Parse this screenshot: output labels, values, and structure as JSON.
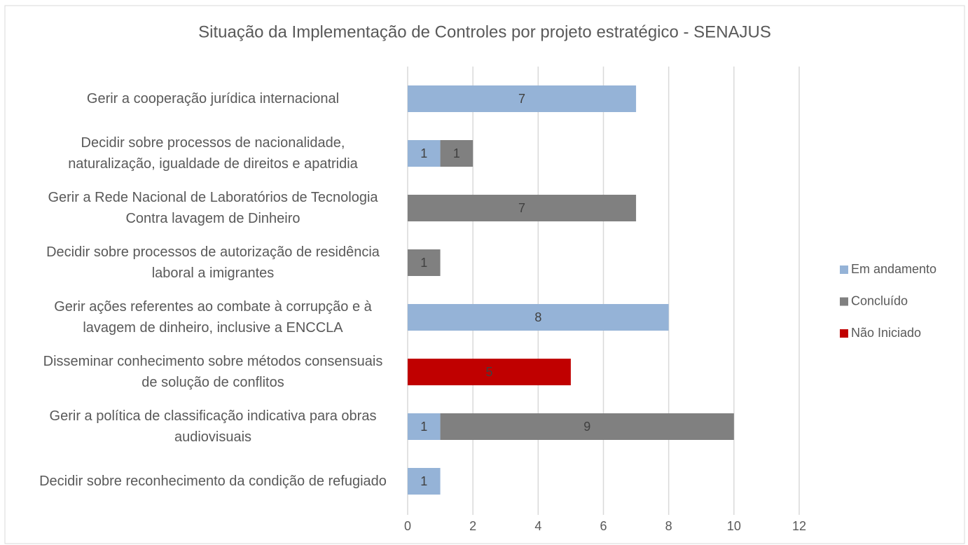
{
  "chart_data": {
    "type": "bar",
    "orientation": "horizontal",
    "stacked": true,
    "title": "Situação da Implementação de Controles por projeto estratégico - SENAJUS",
    "categories": [
      "Gerir a cooperação jurídica internacional",
      "Decidir sobre processos de nacionalidade, naturalização, igualdade de direitos e apatridia",
      "Gerir a Rede Nacional de Laboratórios de Tecnologia Contra lavagem de Dinheiro",
      "Decidir sobre processos de autorização de residência laboral a imigrantes",
      "Gerir ações referentes ao combate à corrupção e à lavagem de dinheiro, inclusive a ENCCLA",
      "Disseminar conhecimento sobre métodos consensuais de solução de conflitos",
      "Gerir a política de classificação indicativa para obras audiovisuais",
      "Decidir sobre reconhecimento da condição de refugiado"
    ],
    "series": [
      {
        "name": "Em andamento",
        "color": "#95b3d7",
        "values": [
          7,
          1,
          null,
          null,
          8,
          null,
          1,
          1
        ]
      },
      {
        "name": "Concluído",
        "color": "#808080",
        "values": [
          null,
          1,
          7,
          1,
          null,
          null,
          9,
          null
        ]
      },
      {
        "name": "Não Iniciado",
        "color": "#c00000",
        "values": [
          null,
          null,
          null,
          null,
          null,
          5,
          null,
          null
        ]
      }
    ],
    "xlim": [
      0,
      12
    ],
    "xticks": [
      0,
      2,
      4,
      6,
      8,
      10,
      12
    ],
    "grid": true,
    "legend": "right"
  }
}
